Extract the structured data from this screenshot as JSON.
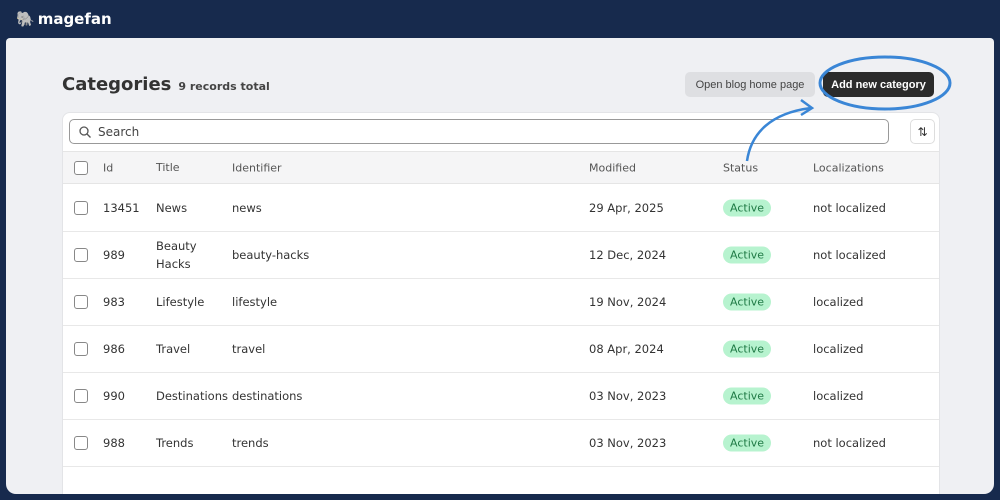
{
  "brand": {
    "name": "magefan"
  },
  "header": {
    "title": "Categories",
    "subtitle": "9 records total",
    "open_blog": "Open blog home page",
    "add_new": "Add new category"
  },
  "search": {
    "placeholder": "Search"
  },
  "columns": [
    "Id",
    "Title",
    "Identifier",
    "Modified",
    "Status",
    "Localizations"
  ],
  "rows": [
    {
      "id": "13451",
      "title": "News",
      "identifier": "news",
      "modified": "29 Apr, 2025",
      "status": "Active",
      "localizations": "not localized"
    },
    {
      "id": "989",
      "title": "Beauty Hacks",
      "identifier": "beauty-hacks",
      "modified": "12 Dec, 2024",
      "status": "Active",
      "localizations": "not localized"
    },
    {
      "id": "983",
      "title": "Lifestyle",
      "identifier": "lifestyle",
      "modified": "19 Nov, 2024",
      "status": "Active",
      "localizations": "localized"
    },
    {
      "id": "986",
      "title": "Travel",
      "identifier": "travel",
      "modified": "08 Apr, 2024",
      "status": "Active",
      "localizations": "localized"
    },
    {
      "id": "990",
      "title": "Destinations",
      "identifier": "destinations",
      "modified": "03 Nov, 2023",
      "status": "Active",
      "localizations": "localized"
    },
    {
      "id": "988",
      "title": "Trends",
      "identifier": "trends",
      "modified": "03 Nov, 2023",
      "status": "Active",
      "localizations": "not localized"
    }
  ],
  "colors": {
    "frame": "#172a4d",
    "highlight": "#3a86d6",
    "active_badge": "#b7f3cf"
  }
}
